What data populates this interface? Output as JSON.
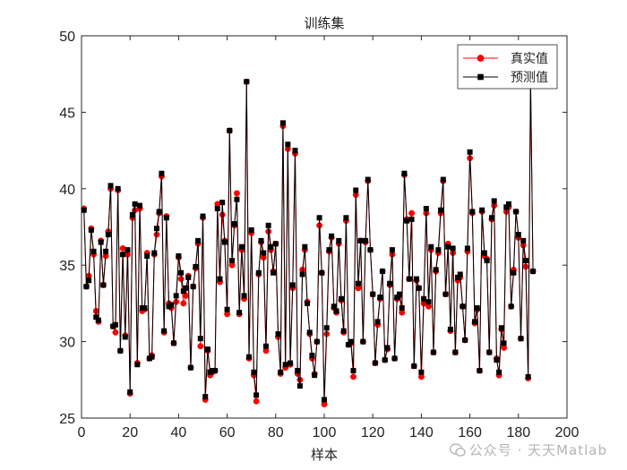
{
  "chart_data": {
    "type": "line",
    "title": "训练集",
    "xlabel": "样本",
    "ylabel": "",
    "xlim": [
      0,
      200
    ],
    "ylim": [
      25,
      50
    ],
    "xticks": [
      0,
      20,
      40,
      60,
      80,
      100,
      120,
      140,
      160,
      180,
      200
    ],
    "yticks": [
      25,
      30,
      35,
      40,
      45,
      50
    ],
    "grid": false,
    "legend_position": "top-right",
    "series": [
      {
        "name": "真实值",
        "color": "#ff0000",
        "marker": "circle",
        "values": [
          38.7,
          33.6,
          34.3,
          37.4,
          35.7,
          32.0,
          31.3,
          36.6,
          33.7,
          35.6,
          37.2,
          40.0,
          31.0,
          30.6,
          39.9,
          29.4,
          36.1,
          30.4,
          35.7,
          26.6,
          38.1,
          38.6,
          28.6,
          38.7,
          32.0,
          32.1,
          35.8,
          28.9,
          29.1,
          35.7,
          37.0,
          38.4,
          40.8,
          30.6,
          38.2,
          32.5,
          32.2,
          29.9,
          32.6,
          35.5,
          34.1,
          32.5,
          33.0,
          34.3,
          28.3,
          33.6,
          34.8,
          36.4,
          29.7,
          38.1,
          26.2,
          29.4,
          27.8,
          28.0,
          28.1,
          39.0,
          33.9,
          38.3,
          36.6,
          31.8,
          43.8,
          35.0,
          37.6,
          39.7,
          31.8,
          36.0,
          32.8,
          47.0,
          28.9,
          37.1,
          27.8,
          26.1,
          34.4,
          36.5,
          35.5,
          29.4,
          37.2,
          36.0,
          34.6,
          36.4,
          30.3,
          27.9,
          44.1,
          28.3,
          42.6,
          28.5,
          33.5,
          42.3,
          27.9,
          27.5,
          34.7,
          36.0,
          32.6,
          30.5,
          28.9,
          27.9,
          30.0,
          37.6,
          34.5,
          25.9,
          30.5,
          35.9,
          36.8,
          32.2,
          31.9,
          36.4,
          32.7,
          30.6,
          37.9,
          29.8,
          29.9,
          27.7,
          39.6,
          33.5,
          36.6,
          30.0,
          36.5,
          40.5,
          36.0,
          33.1,
          28.6,
          31.1,
          32.8,
          34.6,
          28.8,
          29.5,
          33.7,
          35.7,
          28.9,
          32.8,
          33.0,
          31.9,
          40.9,
          38.0,
          34.1,
          38.4,
          28.4,
          34.0,
          33.5,
          27.7,
          32.5,
          38.4,
          32.3,
          36.0,
          29.3,
          34.6,
          35.8,
          38.4,
          40.5,
          33.1,
          36.4,
          30.7,
          35.8,
          29.3,
          34.0,
          34.2,
          32.3,
          30.1,
          35.9,
          42.0,
          38.4,
          31.2,
          32.1,
          28.1,
          38.5,
          35.6,
          35.4,
          29.3,
          38.0,
          38.9,
          28.9,
          27.8,
          30.8,
          29.6,
          38.5,
          38.8,
          32.3,
          34.7,
          38.5,
          36.8,
          30.2,
          36.3,
          34.9,
          27.6,
          47.0,
          34.6
        ]
      },
      {
        "name": "预测值",
        "color": "#000000",
        "marker": "square",
        "values": [
          38.6,
          33.6,
          34.0,
          37.3,
          35.9,
          31.6,
          31.4,
          36.5,
          33.7,
          35.9,
          37.0,
          40.2,
          31.0,
          31.1,
          40.0,
          29.4,
          35.7,
          30.3,
          36.0,
          26.7,
          38.3,
          39.0,
          28.5,
          38.9,
          32.2,
          32.2,
          35.6,
          28.9,
          29.0,
          35.8,
          37.4,
          38.5,
          41.0,
          30.7,
          38.1,
          32.3,
          32.4,
          29.9,
          33.0,
          35.6,
          34.5,
          33.3,
          33.5,
          34.2,
          28.3,
          33.6,
          34.9,
          36.6,
          30.2,
          38.2,
          26.4,
          29.5,
          28.0,
          28.1,
          28.1,
          38.7,
          34.1,
          39.1,
          36.5,
          32.1,
          43.8,
          35.3,
          37.7,
          39.3,
          31.9,
          36.2,
          33.0,
          47.0,
          29.0,
          37.3,
          28.0,
          26.5,
          34.5,
          36.6,
          35.8,
          29.7,
          37.6,
          36.2,
          34.5,
          36.4,
          30.5,
          28.0,
          44.3,
          28.5,
          42.9,
          28.6,
          33.7,
          42.5,
          28.1,
          27.1,
          34.4,
          36.2,
          32.5,
          30.6,
          29.1,
          27.8,
          30.0,
          38.1,
          34.5,
          26.2,
          30.9,
          36.0,
          36.9,
          32.3,
          32.0,
          36.6,
          32.8,
          30.7,
          38.1,
          29.8,
          30.0,
          28.1,
          39.9,
          33.8,
          36.6,
          30.0,
          36.6,
          40.6,
          36.0,
          33.1,
          28.6,
          31.3,
          32.9,
          34.6,
          28.8,
          29.6,
          33.8,
          36.0,
          28.9,
          32.9,
          33.1,
          32.2,
          41.0,
          37.9,
          34.1,
          38.0,
          28.4,
          34.1,
          33.5,
          28.0,
          32.8,
          38.7,
          32.6,
          36.2,
          29.3,
          34.7,
          36.0,
          38.6,
          40.6,
          33.1,
          36.2,
          30.8,
          36.1,
          29.3,
          34.2,
          34.4,
          32.3,
          30.1,
          36.1,
          42.4,
          38.5,
          31.3,
          32.2,
          28.1,
          38.6,
          35.8,
          35.3,
          29.3,
          38.1,
          39.2,
          28.8,
          28.0,
          30.9,
          29.9,
          38.8,
          39.0,
          32.3,
          34.5,
          38.5,
          37.0,
          30.2,
          36.6,
          35.3,
          27.7,
          47.2,
          34.6
        ]
      }
    ]
  },
  "watermark": {
    "text": "公众号 · 天天Matlab"
  }
}
